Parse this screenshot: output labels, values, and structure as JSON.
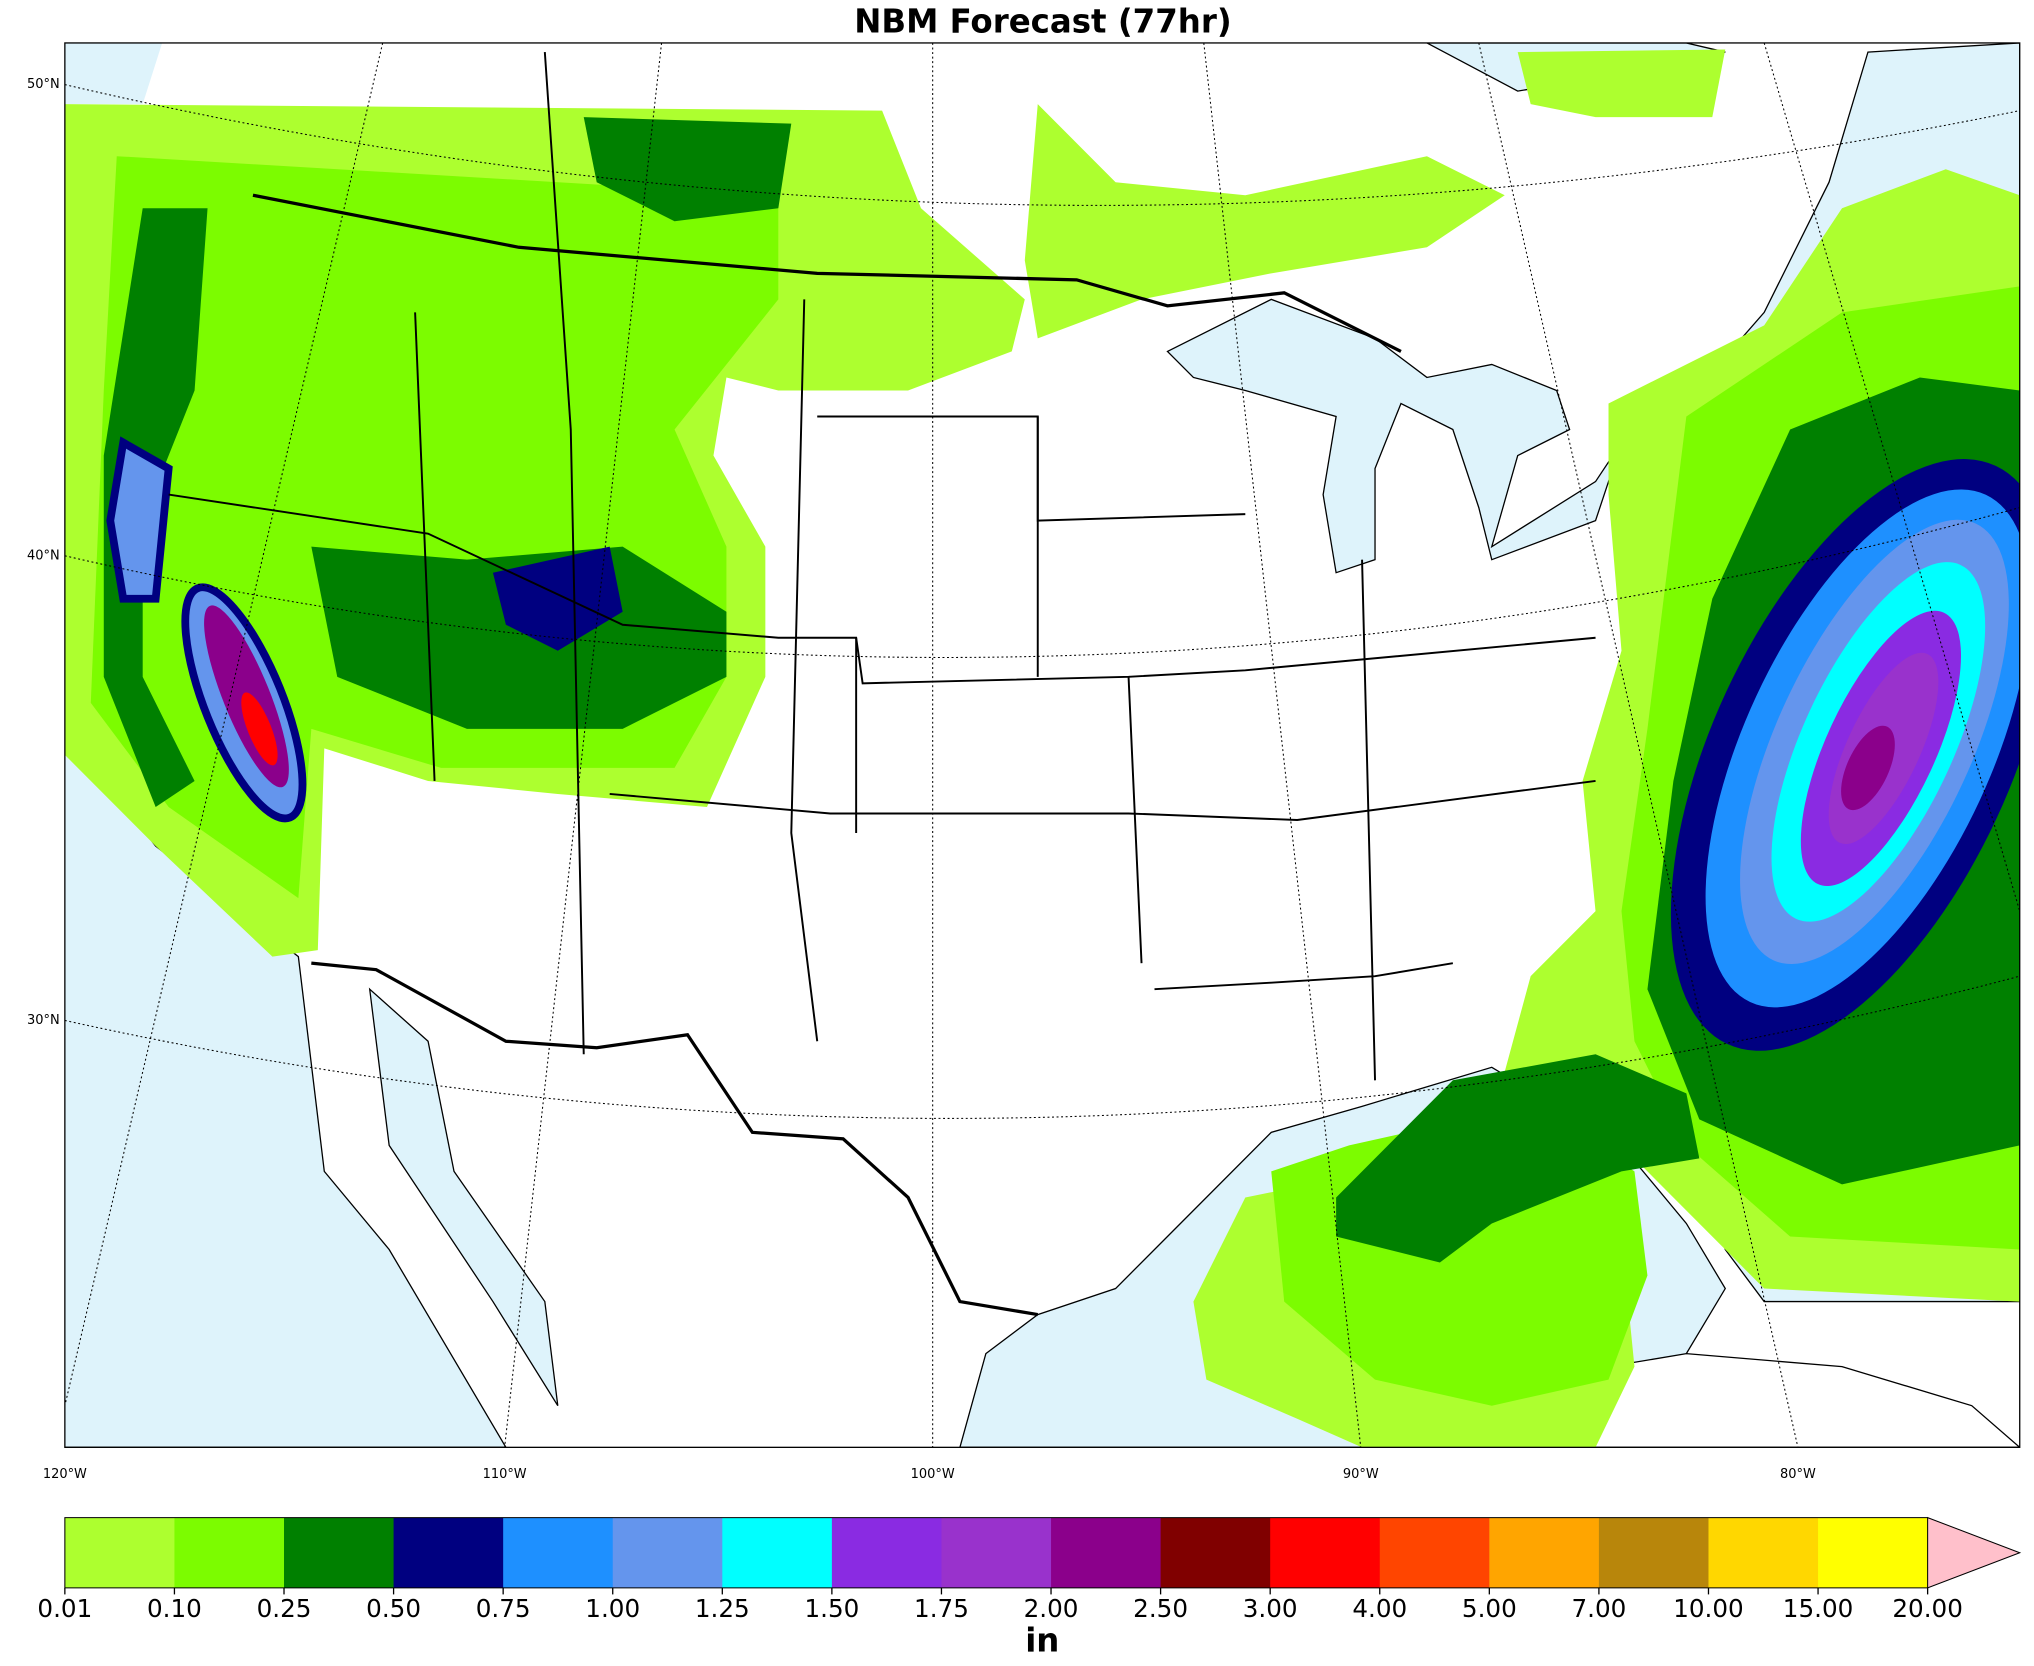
{
  "title": "NBM Forecast (77hr)",
  "map": {
    "lat_labels": [
      "50°N",
      "40°N",
      "30°N"
    ],
    "lon_labels": [
      "120°W",
      "110°W",
      "100°W",
      "90°W",
      "80°W"
    ]
  },
  "colorbar": {
    "label": "in",
    "levels": [
      {
        "value": 0.01,
        "label": "0.01"
      },
      {
        "value": 0.1,
        "label": "0.10"
      },
      {
        "value": 0.25,
        "label": "0.25"
      },
      {
        "value": 0.5,
        "label": "0.50"
      },
      {
        "value": 0.75,
        "label": "0.75"
      },
      {
        "value": 1,
        "label": "1.00"
      },
      {
        "value": 1.25,
        "label": "1.25"
      },
      {
        "value": 1.5,
        "label": "1.50"
      },
      {
        "value": 1.75,
        "label": "1.75"
      },
      {
        "value": 2,
        "label": "2.00"
      },
      {
        "value": 2.5,
        "label": "2.50"
      },
      {
        "value": 3,
        "label": "3.00"
      },
      {
        "value": 4,
        "label": "4.00"
      },
      {
        "value": 5,
        "label": "5.00"
      },
      {
        "value": 7,
        "label": "7.00"
      },
      {
        "value": 10,
        "label": "10.00"
      },
      {
        "value": 15,
        "label": "15.00"
      },
      {
        "value": 20,
        "label": "20.00"
      }
    ],
    "colors": [
      "#adff2f",
      "#7cfc00",
      "#008000",
      "#000080",
      "#1e90ff",
      "#6495ed",
      "#00ffff",
      "#8a2be2",
      "#9932cc",
      "#8b008b",
      "#800000",
      "#ff0000",
      "#ff4500",
      "#ffa500",
      "#b8860b",
      "#ffd700",
      "#ffff00"
    ],
    "over_color": "#ffc0cb"
  }
}
